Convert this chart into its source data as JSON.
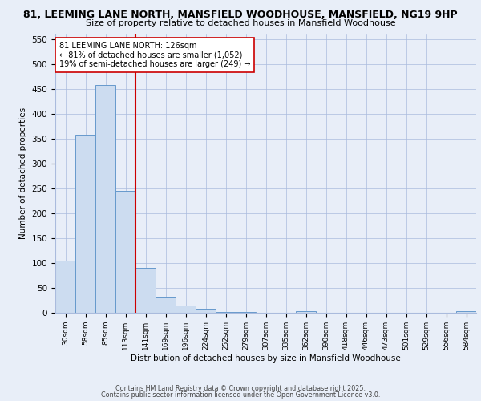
{
  "title1": "81, LEEMING LANE NORTH, MANSFIELD WOODHOUSE, MANSFIELD, NG19 9HP",
  "title2": "Size of property relative to detached houses in Mansfield Woodhouse",
  "xlabel": "Distribution of detached houses by size in Mansfield Woodhouse",
  "ylabel": "Number of detached properties",
  "bar_labels": [
    "30sqm",
    "58sqm",
    "85sqm",
    "113sqm",
    "141sqm",
    "169sqm",
    "196sqm",
    "224sqm",
    "252sqm",
    "279sqm",
    "307sqm",
    "335sqm",
    "362sqm",
    "390sqm",
    "418sqm",
    "446sqm",
    "473sqm",
    "501sqm",
    "529sqm",
    "556sqm",
    "584sqm"
  ],
  "bar_values": [
    104,
    357,
    457,
    245,
    90,
    32,
    14,
    8,
    2,
    1,
    0,
    0,
    4,
    0,
    0,
    0,
    0,
    0,
    0,
    0,
    4
  ],
  "bar_color": "#ccdcf0",
  "bar_edge_color": "#6699cc",
  "vline_x": 3.5,
  "vline_color": "#cc0000",
  "annotation_text": "81 LEEMING LANE NORTH: 126sqm\n← 81% of detached houses are smaller (1,052)\n19% of semi-detached houses are larger (249) →",
  "annotation_box_color": "#ffffff",
  "annotation_box_edge": "#cc0000",
  "ylim": [
    0,
    560
  ],
  "yticks": [
    0,
    50,
    100,
    150,
    200,
    250,
    300,
    350,
    400,
    450,
    500,
    550
  ],
  "footer1": "Contains HM Land Registry data © Crown copyright and database right 2025.",
  "footer2": "Contains public sector information licensed under the Open Government Licence v3.0.",
  "bg_color": "#e8eef8",
  "plot_bg_color": "#e8eef8"
}
